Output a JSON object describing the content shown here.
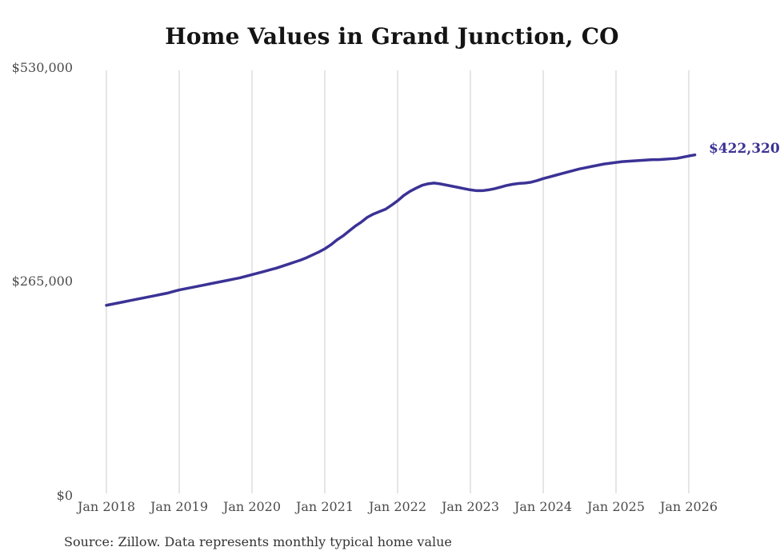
{
  "title": "Home Values in Grand Junction, CO",
  "source": "Source: Zillow. Data represents monthly typical home value",
  "colors": {
    "line": "#3b3295",
    "grid": "#cccccc",
    "axis_text": "#4b4b4b",
    "title_text": "#141414",
    "value_label": "#3b3295",
    "source_text": "#343434",
    "background": "#ffffff"
  },
  "chart_data": {
    "type": "line",
    "title": "Home Values in Grand Junction, CO",
    "xlabel": "",
    "ylabel": "",
    "ylim": [
      0,
      530000
    ],
    "grid": "vertical-only",
    "legend": "none",
    "x_tick_labels": [
      "Jan 2018",
      "Jan 2019",
      "Jan 2020",
      "Jan 2021",
      "Jan 2022",
      "Jan 2023",
      "Jan 2024",
      "Jan 2025",
      "Jan 2026"
    ],
    "y_tick_labels": [
      "$0",
      "$265,000",
      "$530,000"
    ],
    "final_value": 422320,
    "final_value_label": "$422,320",
    "series": [
      {
        "name": "Monthly typical home value",
        "start": "Jan 2018",
        "end": "Feb 2026",
        "frequency": "monthly",
        "values": [
          236000,
          237500,
          239000,
          240500,
          242000,
          243500,
          245000,
          246500,
          248000,
          249500,
          251000,
          253000,
          255000,
          256500,
          258000,
          259500,
          261000,
          262500,
          264000,
          265500,
          267000,
          268500,
          270000,
          272000,
          274000,
          276000,
          278000,
          280000,
          282000,
          284500,
          287000,
          289500,
          292000,
          295000,
          298500,
          302000,
          306000,
          311000,
          317000,
          322000,
          328000,
          334000,
          339000,
          345000,
          349000,
          352000,
          355000,
          360000,
          365500,
          372000,
          377000,
          381000,
          384500,
          386500,
          387500,
          386500,
          385000,
          383500,
          382000,
          380500,
          379000,
          378000,
          378000,
          379000,
          380500,
          382500,
          384500,
          386000,
          387000,
          387500,
          388500,
          390500,
          393000,
          395000,
          397000,
          399000,
          401000,
          403000,
          405000,
          406500,
          408000,
          409500,
          411000,
          412000,
          413000,
          414000,
          414500,
          415000,
          415500,
          416000,
          416500,
          416500,
          417000,
          417500,
          418000,
          419500,
          421000,
          422320
        ]
      }
    ]
  }
}
